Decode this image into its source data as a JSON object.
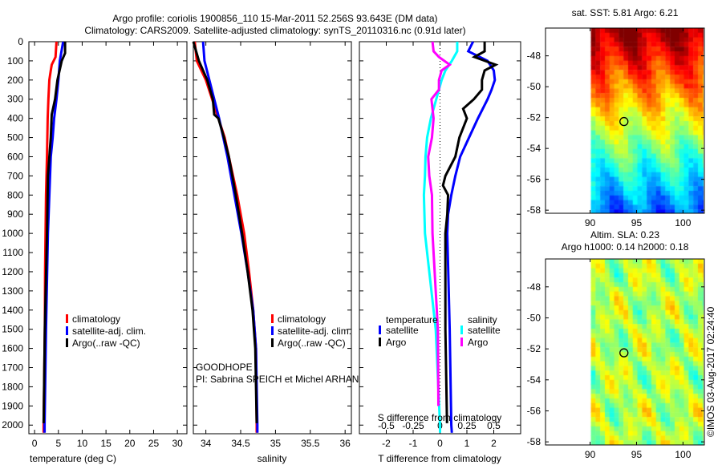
{
  "header": {
    "title_line1": "Argo profile: coriolis 1900856_110 15-Mar-2011 52.256S 93.643E (DM data)",
    "title_line2": "Climatology: CARS2009. Satellite-adjusted climatology: synTS_20110316.nc (0.91d later)"
  },
  "colors": {
    "climatology": "#ff0000",
    "satellite": "#0000ff",
    "argo": "#000000",
    "sal_satellite": "#00ffff",
    "sal_argo": "#ff00ff"
  },
  "footer": {
    "project": "GOODHOPE",
    "pi": "PI: Sabrina SPEICH et Michel ARHAN",
    "stamp": "©IMOS 03-Aug-2017 02:24:40"
  },
  "chart_data": [
    {
      "type": "line",
      "id": "temperature",
      "xlabel": "temperature (deg C)",
      "ylabel": "",
      "xlim": [
        -1.2,
        32
      ],
      "ylim": [
        2045,
        0
      ],
      "xticks": [
        0,
        5,
        10,
        15,
        20,
        25,
        30
      ],
      "yticks": [
        0,
        100,
        200,
        300,
        400,
        500,
        600,
        700,
        800,
        900,
        1000,
        1100,
        1200,
        1300,
        1400,
        1500,
        1600,
        1700,
        1800,
        1900,
        2000
      ],
      "legend": [
        "climatology",
        "satellite-adj. clim.",
        "Argo(..raw -QC)"
      ],
      "legend_placement": "lower-left",
      "series": [
        {
          "name": "climatology",
          "color": "#ff0000",
          "depth": [
            0,
            80,
            120,
            150,
            200,
            300,
            400,
            600,
            800,
            1200,
            1500,
            2000,
            2040
          ],
          "values": [
            4.6,
            4.4,
            3.6,
            3.4,
            3.1,
            2.9,
            2.75,
            2.6,
            2.4,
            2.2,
            2.15,
            1.9,
            1.9
          ]
        },
        {
          "name": "satellite-adj. clim.",
          "color": "#0000ff",
          "depth": [
            0,
            100,
            200,
            300,
            400,
            500,
            600,
            800,
            1000,
            1500,
            2000,
            2040
          ],
          "values": [
            6.0,
            5.3,
            5.0,
            4.6,
            4.1,
            3.8,
            3.4,
            3.1,
            2.8,
            2.4,
            2.1,
            2.1
          ]
        },
        {
          "name": "Argo(..raw -QC)",
          "color": "#000000",
          "depth": [
            0,
            60,
            100,
            200,
            300,
            380,
            500,
            700,
            1000,
            1500,
            1990
          ],
          "values": [
            6.4,
            6.4,
            5.7,
            4.8,
            4.3,
            3.6,
            3.4,
            2.8,
            2.6,
            2.15,
            1.9
          ]
        }
      ]
    },
    {
      "type": "line",
      "id": "salinity",
      "xlabel": "salinity",
      "xlim": [
        33.82,
        36.09
      ],
      "ylim": [
        2045,
        0
      ],
      "xticks": [
        34,
        34.5,
        35,
        35.5,
        36
      ],
      "legend": [
        "climatology",
        "satellite-adj. clim.",
        "Argo(..raw -QC)"
      ],
      "legend_placement": "lower-right",
      "series": [
        {
          "name": "climatology",
          "color": "#ff0000",
          "depth": [
            0,
            100,
            200,
            300,
            400,
            500,
            600,
            800,
            1000,
            1200,
            1400,
            1600,
            2000,
            2040
          ],
          "values": [
            33.84,
            33.87,
            34.0,
            34.09,
            34.18,
            34.27,
            34.33,
            34.45,
            34.55,
            34.62,
            34.68,
            34.72,
            34.73,
            34.73
          ]
        },
        {
          "name": "satellite-adj. clim.",
          "color": "#0000ff",
          "depth": [
            0,
            100,
            200,
            300,
            400,
            500,
            600,
            800,
            1000,
            1200,
            1400,
            1600,
            2000,
            2040
          ],
          "values": [
            33.96,
            33.98,
            34.05,
            34.12,
            34.19,
            34.25,
            34.31,
            34.41,
            34.51,
            34.6,
            34.68,
            34.72,
            34.74,
            34.74
          ]
        },
        {
          "name": "Argo(..raw -QC)",
          "color": "#000000",
          "depth": [
            0,
            100,
            200,
            300,
            380,
            400,
            500,
            600,
            800,
            1000,
            1200,
            1400,
            1600,
            1990
          ],
          "values": [
            33.82,
            33.9,
            34.02,
            34.1,
            34.12,
            34.18,
            34.26,
            34.33,
            34.43,
            34.52,
            34.6,
            34.67,
            34.71,
            34.73
          ]
        }
      ]
    },
    {
      "type": "line",
      "id": "differences",
      "xlabel": "T difference from climatology",
      "x2label": "S difference from climatology",
      "xlim": [
        -3,
        3
      ],
      "x2lim": [
        -0.75,
        0.75
      ],
      "ylim": [
        2045,
        0
      ],
      "xticks": [
        -2,
        -1,
        0,
        1,
        2
      ],
      "x2ticks": [
        -0.5,
        -0.25,
        0,
        0.25,
        0.5
      ],
      "x2ticklabels": [
        "-0.5",
        "-0.25",
        "0",
        "0.25",
        "0.5"
      ],
      "legend_titles": [
        "temperature",
        "salinity"
      ],
      "legend": [
        "satellite",
        "Argo",
        "satellite",
        "Argo"
      ],
      "legend_placement": "lower-center",
      "series": [
        {
          "name": "T satellite",
          "axis": "T",
          "color": "#0000ff",
          "depth": [
            0,
            50,
            100,
            150,
            200,
            250,
            300,
            400,
            500,
            600,
            700,
            800,
            900,
            1000,
            1500,
            2000,
            2040
          ],
          "values": [
            1.23,
            1.05,
            1.77,
            2.0,
            2.04,
            1.92,
            1.77,
            1.41,
            1.08,
            0.75,
            0.57,
            0.42,
            0.3,
            0.27,
            0.36,
            0.42,
            0.44
          ]
        },
        {
          "name": "T Argo",
          "axis": "T",
          "color": "#000000",
          "depth": [
            0,
            50,
            80,
            120,
            150,
            200,
            250,
            300,
            350,
            400,
            500,
            600,
            700,
            750,
            800,
            900,
            1000,
            1500,
            1990
          ],
          "values": [
            1.66,
            1.66,
            1.28,
            2.07,
            1.66,
            1.56,
            1.56,
            1.26,
            0.86,
            1.0,
            0.72,
            0.57,
            0.2,
            0.11,
            0.3,
            0.27,
            0.2,
            0.2,
            0.26
          ]
        },
        {
          "name": "S satellite",
          "axis": "S",
          "color": "#00ffff",
          "depth": [
            0,
            50,
            100,
            150,
            200,
            300,
            400,
            500,
            600,
            700,
            800,
            1000,
            1500,
            2000,
            2040
          ],
          "values": [
            0.16,
            0.16,
            0.11,
            0.05,
            0.015,
            -0.035,
            -0.085,
            -0.12,
            -0.135,
            -0.14,
            -0.15,
            -0.14,
            -0.04,
            0.0,
            0.0
          ]
        },
        {
          "name": "S Argo",
          "axis": "S",
          "color": "#ff00ff",
          "depth": [
            0,
            50,
            80,
            120,
            150,
            200,
            250,
            300,
            400,
            500,
            600,
            700,
            800,
            1000,
            1500,
            1900
          ],
          "values": [
            -0.07,
            -0.06,
            -0.01,
            0.09,
            0.015,
            -0.01,
            -0.01,
            -0.08,
            -0.06,
            -0.075,
            -0.11,
            -0.1,
            -0.075,
            -0.07,
            -0.02,
            -0.015
          ]
        }
      ]
    },
    {
      "type": "heatmap",
      "id": "sst-map",
      "title": "sat. SST: 5.81 Argo: 6.21",
      "xlim": [
        85.2,
        102.3
      ],
      "ylim": [
        -58.2,
        -46.2
      ],
      "data_lon_start": 90,
      "xticks": [
        90,
        95,
        100
      ],
      "yticks": [
        -48,
        -50,
        -52,
        -54,
        -56,
        -58
      ],
      "marker": {
        "lon": 93.643,
        "lat": -52.256
      }
    },
    {
      "type": "heatmap",
      "id": "sla-map",
      "title": "Altim. SLA: 0.23",
      "subtitle": "Argo h1000: 0.14 h2000: 0.18",
      "xlim": [
        85.2,
        102.3
      ],
      "ylim": [
        -58.2,
        -46.2
      ],
      "data_lon_start": 90,
      "xticks": [
        90,
        95,
        100
      ],
      "yticks": [
        -48,
        -50,
        -52,
        -54,
        -56,
        -58
      ],
      "marker": {
        "lon": 93.643,
        "lat": -52.256
      }
    }
  ]
}
